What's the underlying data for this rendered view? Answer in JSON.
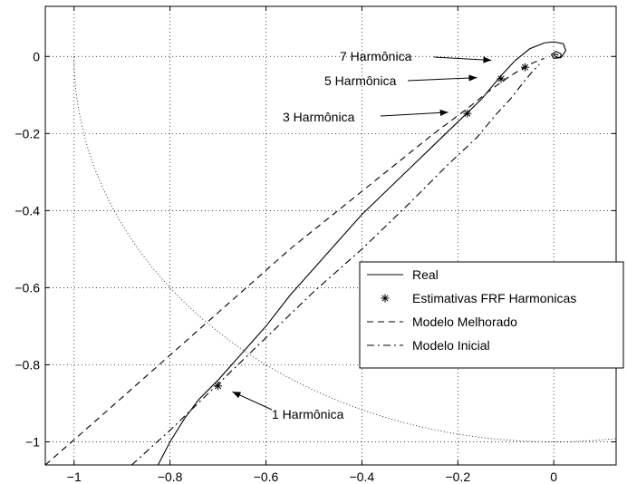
{
  "chart_data": {
    "type": "line",
    "title": "",
    "xlabel": "",
    "ylabel": "",
    "xlim": [
      -1.06,
      0.13
    ],
    "ylim": [
      -1.06,
      0.13
    ],
    "xticks": [
      -1,
      -0.8,
      -0.6,
      -0.4,
      -0.2,
      0
    ],
    "yticks": [
      0,
      -0.2,
      -0.4,
      -0.6,
      -0.8,
      -1
    ],
    "xtick_labels": [
      "−1",
      "−0.8",
      "−0.6",
      "−0.4",
      "−0.2",
      "0"
    ],
    "ytick_labels": [
      "0",
      "−0.2",
      "−0.4",
      "−0.6",
      "−0.8",
      "−1"
    ],
    "grid": true,
    "legend_position": "right",
    "unit_circle_reference": true,
    "series": [
      {
        "name": "Real",
        "style": "solid",
        "color": "#000000",
        "x": [
          -0.825,
          -0.8,
          -0.77,
          -0.74,
          -0.7,
          -0.65,
          -0.6,
          -0.55,
          -0.5,
          -0.45,
          -0.4,
          -0.35,
          -0.3,
          -0.25,
          -0.2,
          -0.15,
          -0.11,
          -0.08,
          -0.05,
          -0.02,
          0.0,
          0.02,
          0.025,
          0.015,
          0.0,
          -0.005,
          0.005,
          0.015,
          0.015,
          0.005,
          0.0,
          0.005,
          0.01
        ],
        "y": [
          -1.06,
          -1.0,
          -0.94,
          -0.89,
          -0.84,
          -0.77,
          -0.7,
          -0.62,
          -0.55,
          -0.48,
          -0.41,
          -0.35,
          -0.29,
          -0.23,
          -0.17,
          -0.11,
          -0.05,
          -0.01,
          0.02,
          0.035,
          0.038,
          0.033,
          0.015,
          -0.003,
          -0.005,
          0.005,
          0.013,
          0.007,
          -0.002,
          -0.002,
          0.004,
          0.006,
          0.003
        ]
      },
      {
        "name": "Estimativas FRF Harmonicas",
        "style": "markers",
        "marker": "asterisk",
        "color": "#000000",
        "x": [
          -0.7,
          -0.18,
          -0.11,
          -0.06
        ],
        "y": [
          -0.855,
          -0.148,
          -0.058,
          -0.028
        ]
      },
      {
        "name": "Modelo Melhorado",
        "style": "dashed",
        "color": "#000000",
        "x": [
          -1.06,
          -0.95,
          -0.85,
          -0.75,
          -0.65,
          -0.55,
          -0.45,
          -0.35,
          -0.25,
          -0.18,
          -0.13,
          -0.09,
          -0.05,
          -0.02
        ],
        "y": [
          -1.06,
          -0.94,
          -0.83,
          -0.72,
          -0.61,
          -0.5,
          -0.4,
          -0.3,
          -0.2,
          -0.135,
          -0.085,
          -0.05,
          -0.02,
          -0.005
        ]
      },
      {
        "name": "Modelo Inicial",
        "style": "dashdot",
        "color": "#000000",
        "x": [
          -0.88,
          -0.8,
          -0.7,
          -0.6,
          -0.5,
          -0.4,
          -0.3,
          -0.22,
          -0.16,
          -0.12,
          -0.09,
          -0.065,
          -0.045,
          -0.03
        ],
        "y": [
          -1.06,
          -0.97,
          -0.85,
          -0.73,
          -0.61,
          -0.5,
          -0.38,
          -0.28,
          -0.21,
          -0.15,
          -0.11,
          -0.07,
          -0.04,
          -0.02
        ]
      }
    ],
    "annotations": [
      {
        "text": "7 Harmônica",
        "point": [
          -0.13,
          -0.01
        ]
      },
      {
        "text": "5 Harmônica",
        "point": [
          -0.16,
          -0.055
        ]
      },
      {
        "text": "3 Harmônica",
        "point": [
          -0.22,
          -0.145
        ]
      },
      {
        "text": "1 Harmônica",
        "point": [
          -0.67,
          -0.87
        ]
      }
    ]
  }
}
